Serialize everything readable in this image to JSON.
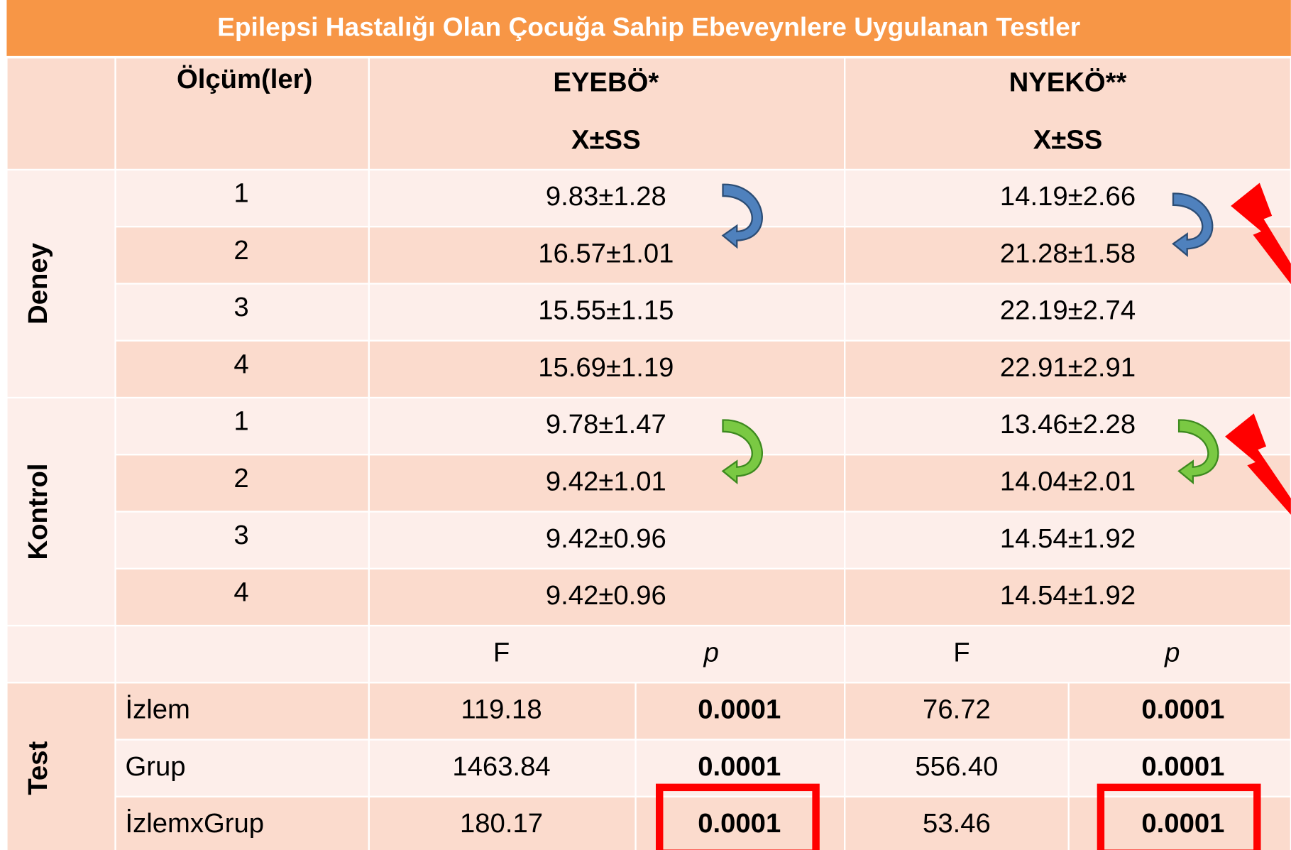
{
  "title": "Epilepsi Hastalığı Olan Çocuğa Sahip Ebeveynlere Uygulanan Testler",
  "header": {
    "olcum": "Ölçüm(ler)",
    "eyebo": "EYEBÖ*",
    "nyeko": "NYEKÖ**",
    "stat": "X±SS"
  },
  "groups": [
    {
      "name": "Deney",
      "rows": [
        {
          "olcum": "1",
          "eyebo": "9.83±1.28",
          "nyeko": "14.19±2.66"
        },
        {
          "olcum": "2",
          "eyebo": "16.57±1.01",
          "nyeko": "21.28±1.58"
        },
        {
          "olcum": "3",
          "eyebo": "15.55±1.15",
          "nyeko": "22.19±2.74"
        },
        {
          "olcum": "4",
          "eyebo": "15.69±1.19",
          "nyeko": "22.91±2.91"
        }
      ]
    },
    {
      "name": "Kontrol",
      "rows": [
        {
          "olcum": "1",
          "eyebo": "9.78±1.47",
          "nyeko": "13.46±2.28"
        },
        {
          "olcum": "2",
          "eyebo": "9.42±1.01",
          "nyeko": "14.04±2.01"
        },
        {
          "olcum": "3",
          "eyebo": "9.42±0.96",
          "nyeko": "14.54±1.92"
        },
        {
          "olcum": "4",
          "eyebo": "9.42±0.96",
          "nyeko": "14.54±1.92"
        }
      ]
    }
  ],
  "test": {
    "name": "Test",
    "columns": [
      "F",
      "p",
      "F",
      "p"
    ],
    "rows": [
      {
        "label": "İzlem",
        "eyebo_f": "119.18",
        "eyebo_p": "0.0001",
        "nyeko_f": "76.72",
        "nyeko_p": "0.0001"
      },
      {
        "label": "Grup",
        "eyebo_f": "1463.84",
        "eyebo_p": "0.0001",
        "nyeko_f": "556.40",
        "nyeko_p": "0.0001"
      },
      {
        "label": "İzlemxGrup",
        "eyebo_f": "180.17",
        "eyebo_p": "0.0001",
        "nyeko_f": "53.46",
        "nyeko_p": "0.0001"
      }
    ]
  }
}
